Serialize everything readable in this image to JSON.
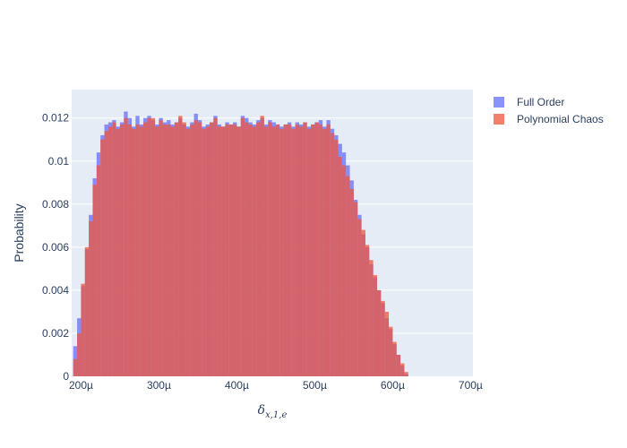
{
  "chart_data": {
    "type": "bar",
    "chart_subtype": "overlaid histogram",
    "title": "",
    "xlabel": "δx,1,e",
    "ylabel": "Probability",
    "x_tick_labels": [
      "200µ",
      "300µ",
      "400µ",
      "500µ",
      "600µ",
      "700µ"
    ],
    "x_ticks": [
      0.0002,
      0.0003,
      0.0004,
      0.0005,
      0.0006,
      0.0007
    ],
    "y_tick_labels": [
      "0",
      "0.002",
      "0.004",
      "0.006",
      "0.008",
      "0.01",
      "0.012"
    ],
    "y_ticks": [
      0,
      0.002,
      0.004,
      0.006,
      0.008,
      0.01,
      0.012
    ],
    "xlim": [
      0.000188,
      0.000703
    ],
    "ylim": [
      0,
      0.01332
    ],
    "bin_width": 5e-06,
    "x_start": 0.00019,
    "grid": true,
    "legend_position": "top-right",
    "series": [
      {
        "name": "Full Order",
        "color": "#636efa",
        "opacity": 0.75,
        "values": [
          0.0014,
          0.0027,
          0.0042,
          0.0059,
          0.0075,
          0.0092,
          0.0104,
          0.0112,
          0.0117,
          0.0118,
          0.0119,
          0.0116,
          0.0118,
          0.0123,
          0.012,
          0.0116,
          0.0121,
          0.0117,
          0.012,
          0.0121,
          0.0119,
          0.0117,
          0.012,
          0.0118,
          0.0119,
          0.0117,
          0.0118,
          0.012,
          0.0117,
          0.0116,
          0.0118,
          0.0122,
          0.0119,
          0.0116,
          0.0117,
          0.0118,
          0.0121,
          0.0117,
          0.0116,
          0.0118,
          0.0117,
          0.0118,
          0.0116,
          0.0121,
          0.012,
          0.0118,
          0.0117,
          0.0119,
          0.012,
          0.0117,
          0.0119,
          0.0118,
          0.0117,
          0.0116,
          0.0117,
          0.0118,
          0.0116,
          0.0118,
          0.0117,
          0.0118,
          0.0116,
          0.0117,
          0.0118,
          0.0119,
          0.0116,
          0.0119,
          0.0115,
          0.0112,
          0.0108,
          0.0104,
          0.0098,
          0.0091,
          0.0082,
          0.0075,
          0.0066,
          0.006,
          0.0052,
          0.0046,
          0.004,
          0.0034,
          0.0027,
          0.0022,
          0.0015,
          0.001,
          0.0005,
          0.0001
        ]
      },
      {
        "name": "Polynomial Chaos",
        "color": "#ef553b",
        "opacity": 0.75,
        "values": [
          0.0008,
          0.002,
          0.0043,
          0.006,
          0.0072,
          0.0089,
          0.0098,
          0.011,
          0.0114,
          0.0116,
          0.0118,
          0.0115,
          0.0117,
          0.012,
          0.0117,
          0.0115,
          0.0117,
          0.0116,
          0.0118,
          0.012,
          0.012,
          0.0116,
          0.0119,
          0.0117,
          0.0117,
          0.0116,
          0.0118,
          0.0121,
          0.0118,
          0.0115,
          0.0117,
          0.0119,
          0.0118,
          0.0115,
          0.0116,
          0.0118,
          0.012,
          0.0116,
          0.0116,
          0.0117,
          0.0117,
          0.0117,
          0.0116,
          0.012,
          0.0118,
          0.0117,
          0.0116,
          0.0118,
          0.0121,
          0.0116,
          0.0118,
          0.0116,
          0.0117,
          0.0115,
          0.0117,
          0.0117,
          0.0115,
          0.0117,
          0.0116,
          0.0118,
          0.0115,
          0.0117,
          0.0118,
          0.0117,
          0.0115,
          0.0117,
          0.0113,
          0.011,
          0.0102,
          0.0098,
          0.0093,
          0.0087,
          0.0081,
          0.0073,
          0.0068,
          0.0061,
          0.0054,
          0.0047,
          0.004,
          0.0035,
          0.003,
          0.0023,
          0.0016,
          0.001,
          0.0006,
          0.0002
        ]
      }
    ]
  }
}
